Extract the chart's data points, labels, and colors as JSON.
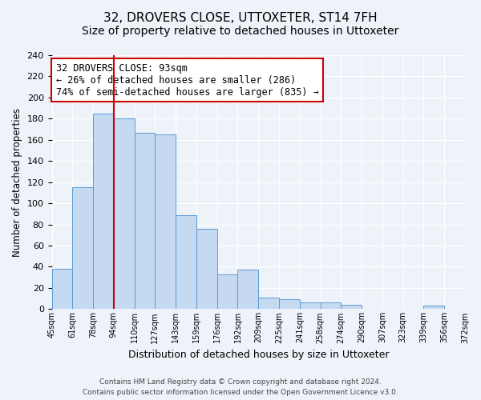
{
  "title": "32, DROVERS CLOSE, UTTOXETER, ST14 7FH",
  "subtitle": "Size of property relative to detached houses in Uttoxeter",
  "xlabel": "Distribution of detached houses by size in Uttoxeter",
  "ylabel": "Number of detached properties",
  "bin_labels": [
    "45sqm",
    "61sqm",
    "78sqm",
    "94sqm",
    "110sqm",
    "127sqm",
    "143sqm",
    "159sqm",
    "176sqm",
    "192sqm",
    "209sqm",
    "225sqm",
    "241sqm",
    "258sqm",
    "274sqm",
    "290sqm",
    "307sqm",
    "323sqm",
    "339sqm",
    "356sqm",
    "372sqm"
  ],
  "bar_heights": [
    38,
    115,
    185,
    180,
    167,
    165,
    89,
    76,
    33,
    37,
    11,
    9,
    6,
    6,
    4,
    0,
    0,
    0,
    3,
    0
  ],
  "bar_color": "#c5d9f0",
  "bar_edge_color": "#5b9bd5",
  "vline_color": "#cc0000",
  "ylim": [
    0,
    240
  ],
  "yticks": [
    0,
    20,
    40,
    60,
    80,
    100,
    120,
    140,
    160,
    180,
    200,
    220,
    240
  ],
  "annotation_title": "32 DROVERS CLOSE: 93sqm",
  "annotation_line1": "← 26% of detached houses are smaller (286)",
  "annotation_line2": "74% of semi-detached houses are larger (835) →",
  "annotation_box_color": "#ffffff",
  "annotation_box_edge": "#cc0000",
  "footnote1": "Contains HM Land Registry data © Crown copyright and database right 2024.",
  "footnote2": "Contains public sector information licensed under the Open Government Licence v3.0.",
  "bg_color": "#eef3fa",
  "plot_bg_color": "#eef3fa",
  "title_fontsize": 11,
  "subtitle_fontsize": 10
}
